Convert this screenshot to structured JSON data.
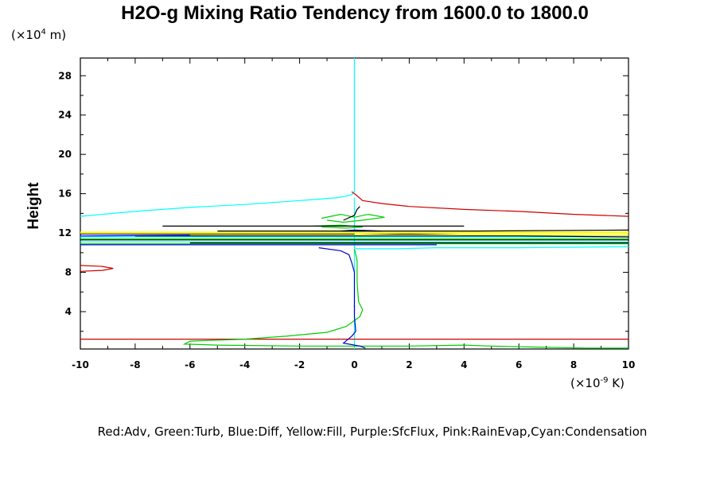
{
  "chart_data": {
    "type": "line",
    "title": "H2O-g Mixing Ratio Tendency from 1600.0 to 1800.0",
    "ylabel": "Height",
    "xlabel": "",
    "y_unit": {
      "base": "(×10",
      "exp": "4",
      "tail": " m)"
    },
    "x_unit": {
      "base": "(×10",
      "exp": "-9",
      "tail": " K)"
    },
    "xlim": [
      -10,
      10
    ],
    "ylim": [
      0.2,
      29.8
    ],
    "x_ticks": [
      -10,
      -8,
      -6,
      -4,
      -2,
      0,
      2,
      4,
      6,
      8,
      10
    ],
    "y_ticks": [
      4,
      8,
      12,
      16,
      20,
      24,
      28
    ],
    "legend": "Red:Adv, Green:Turb, Blue:Diff, Yellow:Fill, Purple:SfcFlux, Pink:RainEvap,Cyan:Condensation",
    "series": [
      {
        "color": "#00ffff",
        "segments": [
          [
            [
              0,
              29.8
            ],
            [
              0,
              18
            ],
            [
              0,
              16.2
            ],
            [
              -0.1,
              15.9
            ],
            [
              -0.6,
              15.6
            ],
            [
              -2,
              15.3
            ],
            [
              -4,
              14.9
            ],
            [
              -6,
              14.6
            ],
            [
              -8,
              14.2
            ],
            [
              -10,
              13.7
            ]
          ],
          [
            [
              0,
              15.6
            ],
            [
              0,
              12
            ],
            [
              0,
              10.5
            ],
            [
              0.1,
              10.4
            ],
            [
              1.5,
              10.4
            ],
            [
              3,
              10.5
            ],
            [
              6,
              10.5
            ],
            [
              10,
              10.6
            ]
          ],
          [
            [
              -10,
              11.1
            ],
            [
              -4,
              11.1
            ],
            [
              0,
              11.1
            ],
            [
              10,
              11.1
            ]
          ],
          [
            [
              -10,
              11.6
            ],
            [
              0,
              11.6
            ],
            [
              10,
              11.6
            ]
          ],
          [
            [
              0,
              10.4
            ],
            [
              0,
              0.2
            ]
          ]
        ]
      },
      {
        "color": "#cc0000",
        "segments": [
          [
            [
              -0.1,
              16.2
            ],
            [
              0.05,
              15.9
            ],
            [
              0.3,
              15.3
            ],
            [
              1,
              15
            ],
            [
              2,
              14.7
            ],
            [
              4,
              14.4
            ],
            [
              6,
              14.2
            ],
            [
              8,
              13.9
            ],
            [
              10,
              13.7
            ]
          ],
          [
            [
              -10,
              1.2
            ],
            [
              10,
              1.2
            ]
          ],
          [
            [
              -10,
              8.7
            ],
            [
              -9.2,
              8.6
            ],
            [
              -8.8,
              8.4
            ],
            [
              -9.2,
              8.2
            ],
            [
              -10,
              8.1
            ]
          ]
        ]
      },
      {
        "color": "#00cc00",
        "segments": [
          [
            [
              -10,
              11.4
            ],
            [
              -4,
              11.4
            ],
            [
              0,
              11.4
            ],
            [
              4,
              11.4
            ],
            [
              10,
              11.4
            ]
          ],
          [
            [
              -10,
              10.9
            ],
            [
              -6,
              10.9
            ],
            [
              -2,
              10.9
            ],
            [
              0,
              10.9
            ],
            [
              6,
              10.9
            ],
            [
              10,
              10.9
            ]
          ],
          [
            [
              -1.2,
              13.5
            ],
            [
              -0.5,
              13.9
            ],
            [
              0,
              13.6
            ],
            [
              0.5,
              13.9
            ],
            [
              1.1,
              13.6
            ],
            [
              0.3,
              13.3
            ],
            [
              -0.4,
              13.1
            ],
            [
              -1,
              13.3
            ]
          ],
          [
            [
              -1.5,
              12.7
            ],
            [
              -0.5,
              12.8
            ],
            [
              0.3,
              12.6
            ],
            [
              -0.3,
              12.5
            ],
            [
              -1.2,
              12.6
            ]
          ],
          [
            [
              0,
              10.4
            ],
            [
              0.1,
              9.2
            ],
            [
              0.1,
              7
            ],
            [
              0.15,
              5
            ],
            [
              0.3,
              4.2
            ],
            [
              0.2,
              3.5
            ],
            [
              -0.3,
              2.5
            ],
            [
              -1,
              1.9
            ],
            [
              -2.5,
              1.5
            ],
            [
              -4,
              1.2
            ],
            [
              -6,
              1
            ],
            [
              -6.2,
              0.7
            ],
            [
              -5,
              0.6
            ],
            [
              -2,
              0.5
            ],
            [
              0,
              0.5
            ],
            [
              2,
              0.5
            ],
            [
              4,
              0.6
            ],
            [
              5,
              0.5
            ],
            [
              6.5,
              0.4
            ],
            [
              8.5,
              0.3
            ],
            [
              10,
              0.3
            ]
          ]
        ]
      },
      {
        "color": "#0000cc",
        "segments": [
          [
            [
              -10,
              11.7
            ],
            [
              -4,
              11.8
            ],
            [
              0,
              11.8
            ],
            [
              2,
              11.9
            ],
            [
              4,
              11.8
            ],
            [
              10,
              11.8
            ]
          ],
          [
            [
              -10,
              11.9
            ],
            [
              -3,
              11.9
            ],
            [
              0,
              11.9
            ]
          ],
          [
            [
              -1.3,
              10.5
            ],
            [
              -0.5,
              10.2
            ],
            [
              -0.2,
              9.8
            ],
            [
              -0.1,
              9
            ],
            [
              0,
              8
            ],
            [
              0,
              4.5
            ]
          ],
          [
            [
              0,
              12.3
            ],
            [
              1,
              12.2
            ],
            [
              0.5,
              12.1
            ],
            [
              -0.5,
              12.2
            ],
            [
              0,
              12.3
            ]
          ],
          [
            [
              0,
              4.6
            ],
            [
              0,
              3.5
            ],
            [
              0.05,
              2
            ],
            [
              -0.1,
              1.5
            ],
            [
              -0.4,
              0.8
            ],
            [
              0.2,
              0.5
            ],
            [
              0.4,
              0.3
            ]
          ],
          [
            [
              -10,
              10.8
            ],
            [
              0,
              10.8
            ],
            [
              3,
              10.8
            ]
          ]
        ]
      },
      {
        "color": "#ffff00",
        "segments": [
          [
            [
              -10,
              12.1
            ],
            [
              -4,
              12.1
            ],
            [
              0,
              12.1
            ],
            [
              4,
              12.1
            ],
            [
              10,
              12.1
            ]
          ],
          [
            [
              -10,
              12.0
            ],
            [
              -2,
              12.0
            ],
            [
              0,
              12.0
            ],
            [
              4,
              12.0
            ],
            [
              10,
              12.0
            ]
          ],
          [
            [
              -6,
              11.8
            ],
            [
              0,
              11.8
            ],
            [
              6,
              11.8
            ],
            [
              10,
              11.8
            ]
          ]
        ]
      },
      {
        "color": "#000000",
        "segments": [
          [
            [
              -7,
              12.7
            ],
            [
              0,
              12.7
            ],
            [
              4,
              12.7
            ]
          ],
          [
            [
              -5,
              12.2
            ],
            [
              0,
              12.2
            ],
            [
              4.5,
              12.2
            ],
            [
              10,
              12.3
            ]
          ],
          [
            [
              -8,
              11.7
            ],
            [
              0,
              11.7
            ],
            [
              6,
              11.7
            ],
            [
              10,
              11.6
            ]
          ],
          [
            [
              -10,
              11.3
            ],
            [
              0,
              11.3
            ],
            [
              10,
              11.3
            ]
          ],
          [
            [
              -6,
              11.0
            ],
            [
              0,
              11.0
            ],
            [
              10,
              11.0
            ]
          ],
          [
            [
              -0.4,
              13.3
            ],
            [
              0,
              13.8
            ],
            [
              0.1,
              14.4
            ],
            [
              0.2,
              14.7
            ]
          ]
        ]
      }
    ]
  }
}
